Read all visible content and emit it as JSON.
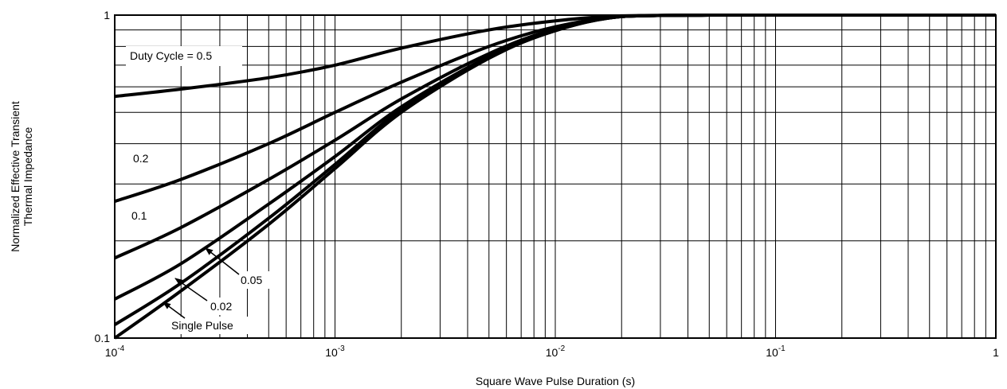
{
  "chart_data": {
    "type": "line",
    "title": "",
    "xlabel": "Square Wave Pulse Duration (s)",
    "ylabel_lines": [
      "Normalized Effective Transient",
      "Thermal Impedance"
    ],
    "xscale": "log",
    "yscale": "log",
    "xlim": [
      0.0001,
      1
    ],
    "ylim": [
      0.1,
      1
    ],
    "grid": true,
    "x_ticks": [
      {
        "value": 0.0001,
        "base": "10",
        "exp": "-4"
      },
      {
        "value": 0.001,
        "base": "10",
        "exp": "-3"
      },
      {
        "value": 0.01,
        "base": "10",
        "exp": "-2"
      },
      {
        "value": 0.1,
        "base": "10",
        "exp": "-1"
      },
      {
        "value": 1,
        "base": "1",
        "exp": ""
      }
    ],
    "y_ticks": [
      {
        "value": 0.1,
        "label": "0.1"
      },
      {
        "value": 1,
        "label": "1"
      }
    ],
    "x": [
      0.0001,
      0.0002,
      0.0005,
      0.001,
      0.002,
      0.005,
      0.01,
      0.02,
      0.05,
      0.1,
      0.2,
      0.5,
      1
    ],
    "series": [
      {
        "name": "Duty Cycle = 0.5",
        "values": [
          0.56,
          0.59,
          0.64,
          0.7,
          0.79,
          0.9,
          0.96,
          0.995,
          1,
          1,
          1,
          1,
          1
        ]
      },
      {
        "name": "0.2",
        "values": [
          0.265,
          0.31,
          0.4,
          0.5,
          0.62,
          0.8,
          0.92,
          0.99,
          1,
          1,
          1,
          1,
          1
        ]
      },
      {
        "name": "0.1",
        "values": [
          0.177,
          0.22,
          0.31,
          0.41,
          0.55,
          0.76,
          0.905,
          0.99,
          1,
          1,
          1,
          1,
          1
        ]
      },
      {
        "name": "0.05",
        "values": [
          0.132,
          0.17,
          0.26,
          0.365,
          0.52,
          0.745,
          0.9,
          0.99,
          1,
          1,
          1,
          1,
          1
        ]
      },
      {
        "name": "0.02",
        "values": [
          0.11,
          0.148,
          0.235,
          0.345,
          0.51,
          0.74,
          0.895,
          0.99,
          1,
          1,
          1,
          1,
          1
        ]
      },
      {
        "name": "Single Pulse",
        "values": [
          0.1,
          0.14,
          0.225,
          0.335,
          0.5,
          0.735,
          0.895,
          0.99,
          1,
          1,
          1,
          1,
          1
        ]
      }
    ],
    "annotations": [
      {
        "text": "Duty Cycle = 0.5",
        "series": "Duty Cycle = 0.5"
      },
      {
        "text": "0.2",
        "series": "0.2"
      },
      {
        "text": "0.1",
        "series": "0.1"
      },
      {
        "text": "0.05",
        "series": "0.05"
      },
      {
        "text": "0.02",
        "series": "0.02"
      },
      {
        "text": "Single Pulse",
        "series": "Single Pulse"
      }
    ],
    "line_color": "#000000",
    "grid_color": "#000000"
  }
}
